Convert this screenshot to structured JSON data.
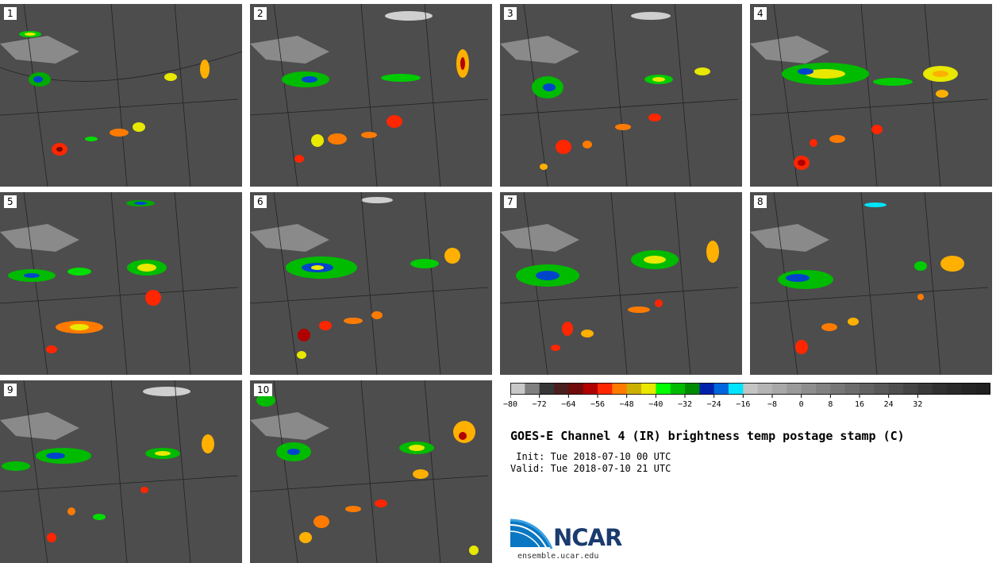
{
  "panels": [
    {
      "label": "1"
    },
    {
      "label": "2"
    },
    {
      "label": "3"
    },
    {
      "label": "4"
    },
    {
      "label": "5"
    },
    {
      "label": "6"
    },
    {
      "label": "7"
    },
    {
      "label": "8"
    },
    {
      "label": "9"
    },
    {
      "label": "10"
    }
  ],
  "colorbar": {
    "colors": [
      "#c8c8c8",
      "#7f7f7f",
      "#363636",
      "#4b1f1f",
      "#700b0b",
      "#b00000",
      "#ff2600",
      "#ff7b00",
      "#ccb000",
      "#e8e800",
      "#00ff00",
      "#00bb00",
      "#008a00",
      "#0022aa",
      "#0066dd",
      "#00e5ff",
      "#c4c4c4",
      "#b4b4b4",
      "#a8a8a8",
      "#9a9a9a",
      "#8e8e8e",
      "#828282",
      "#767676",
      "#6c6c6c",
      "#626262",
      "#585858",
      "#4e4e4e",
      "#444444",
      "#3a3a3a",
      "#303030",
      "#2a2a2a",
      "#242424",
      "#202020"
    ],
    "tick_labels": [
      "−80",
      "−72",
      "−64",
      "−56",
      "−48",
      "−40",
      "−32",
      "−24",
      "−16",
      "−8",
      "0",
      "8",
      "16",
      "24",
      "32"
    ]
  },
  "title": "GOES-E Channel 4 (IR) brightness temp postage stamp (C)",
  "init": " Init: Tue 2018-07-10 00 UTC",
  "valid": "Valid: Tue 2018-07-10 21 UTC",
  "logo_text": "NCAR",
  "website": "ensemble.ucar.edu"
}
